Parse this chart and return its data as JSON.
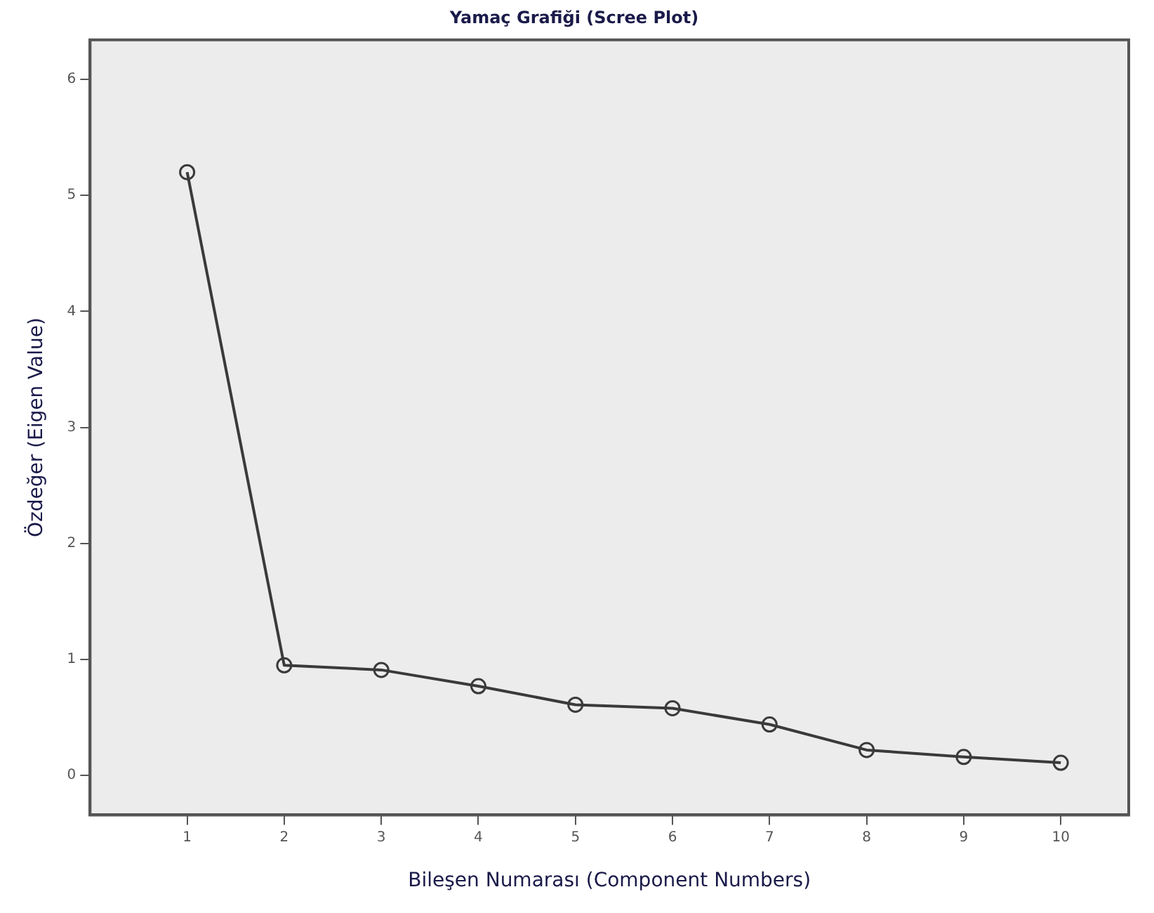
{
  "chart_data": {
    "type": "line",
    "title": "Yamaç Grafiği (Scree Plot)",
    "xlabel": "Bileşen Numarası (Component Numbers)",
    "ylabel": "Özdeğer (Eigen Value)",
    "x": [
      1,
      2,
      3,
      4,
      5,
      6,
      7,
      8,
      9,
      10
    ],
    "values": [
      5.2,
      0.95,
      0.91,
      0.77,
      0.61,
      0.58,
      0.44,
      0.22,
      0.16,
      0.11
    ],
    "color": "#3a3a3a",
    "marker": "circle",
    "line_style": "solid",
    "grid": false,
    "legend": false,
    "xlim": [
      0,
      10.7
    ],
    "xticks": [
      1,
      2,
      3,
      4,
      5,
      6,
      7,
      8,
      9,
      10
    ],
    "ylim": [
      -0.34,
      6.34
    ],
    "yticks": [
      0,
      1,
      2,
      3,
      4,
      5,
      6
    ]
  }
}
